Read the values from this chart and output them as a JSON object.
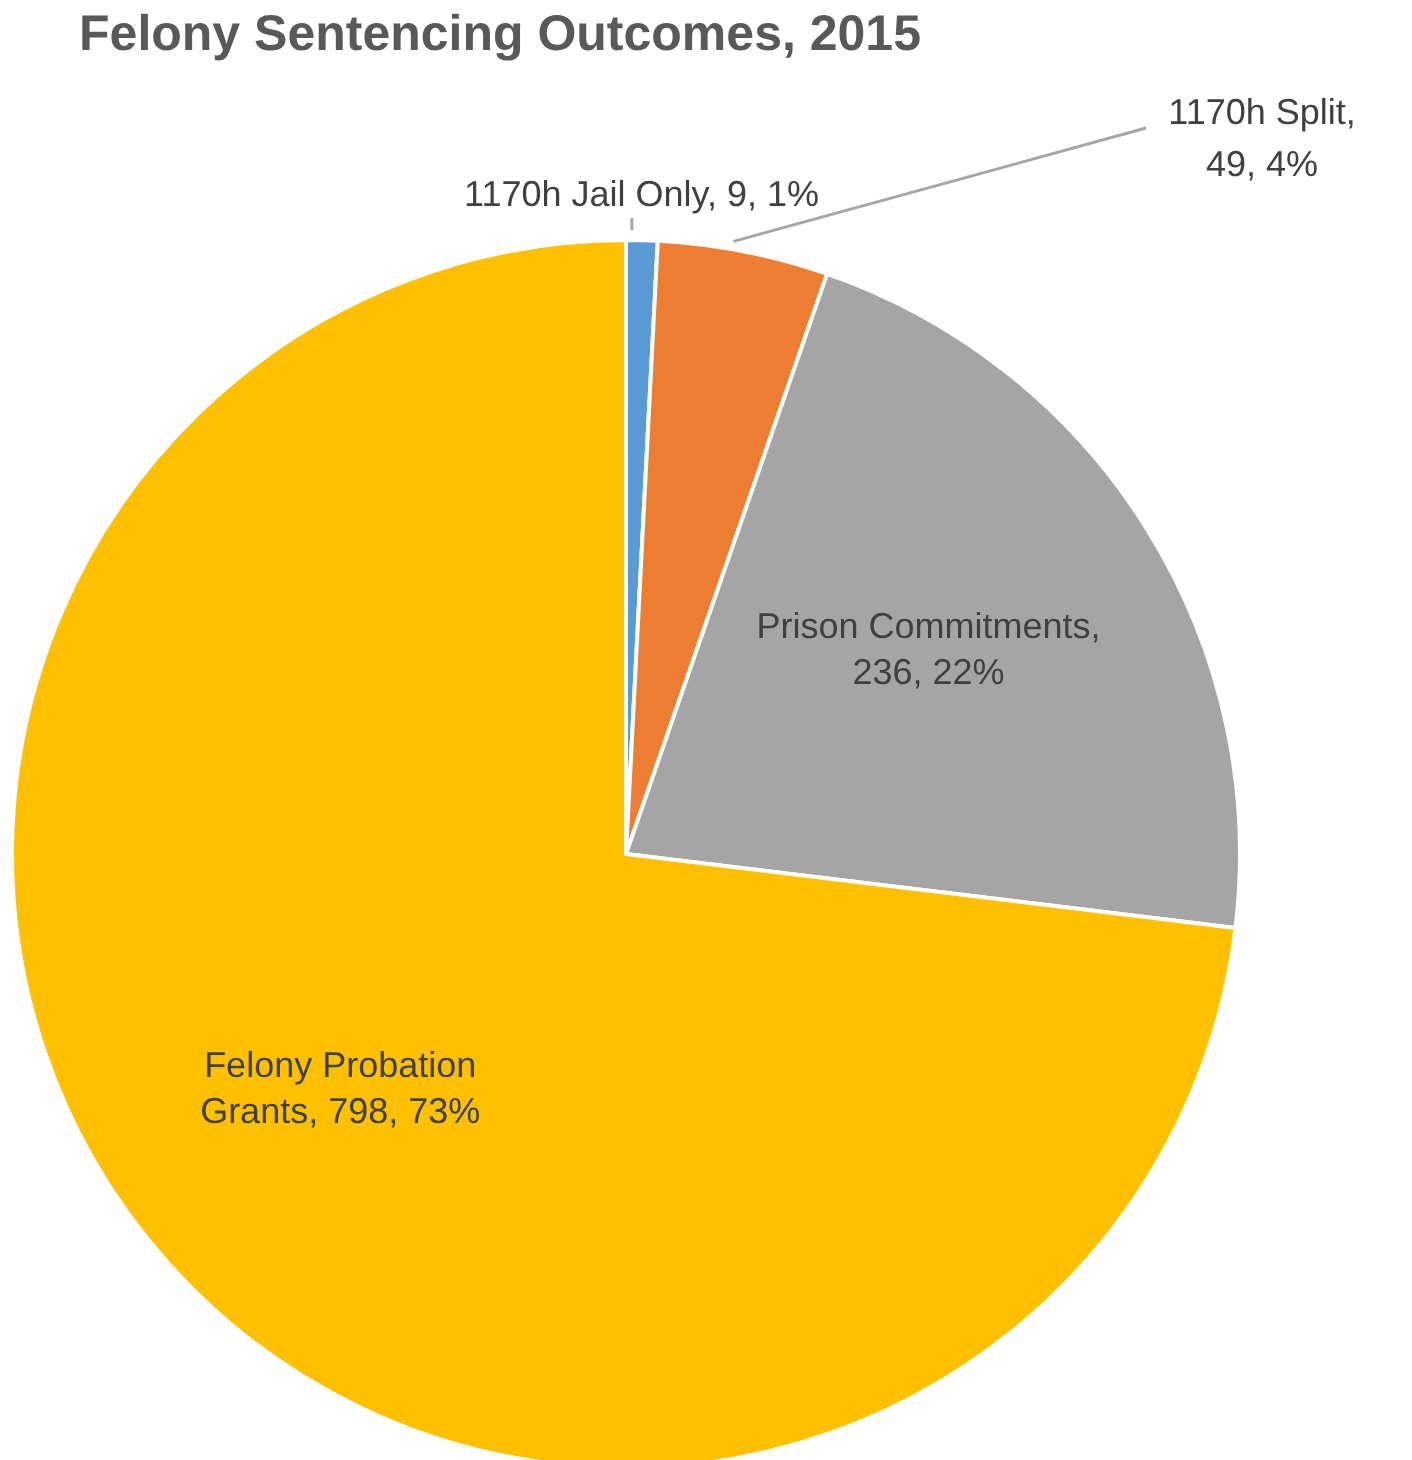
{
  "chart_data": {
    "type": "pie",
    "title": "Felony Sentencing Outcomes, 2015",
    "categories": [
      "1170h Jail Only",
      "1170h Split",
      "Prison Commitments",
      "Felony Probation Grants"
    ],
    "values": [
      9,
      49,
      236,
      798
    ],
    "value_labels": [
      ", 9, 1%",
      ", 49, 4%",
      ", 236, 22%",
      ", 798, 73%"
    ],
    "colors": [
      "#5b9bd5",
      "#ed7d31",
      "#a5a5a5",
      "#ffc000"
    ]
  }
}
